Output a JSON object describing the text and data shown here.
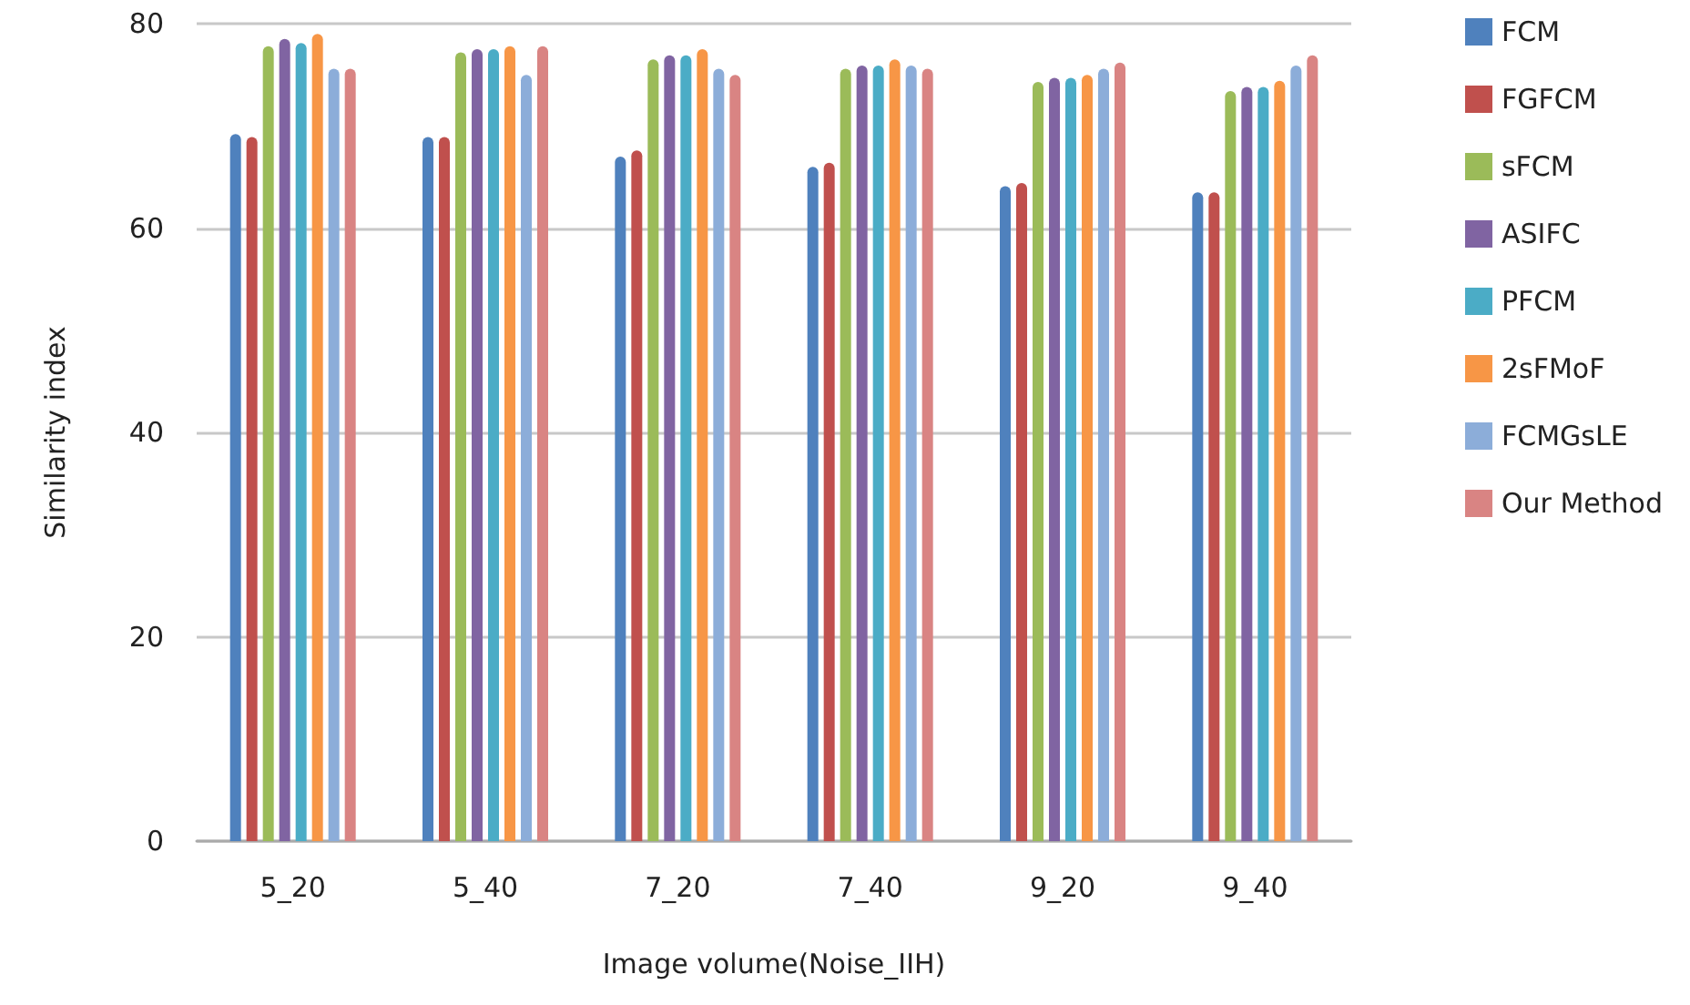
{
  "chart_data": {
    "type": "bar",
    "xlabel": "Image volume(Noise_IIH)",
    "ylabel": "Similarity index",
    "categories": [
      "5_20",
      "5_40",
      "7_20",
      "7_40",
      "9_20",
      "9_40"
    ],
    "series": [
      {
        "name": "FCM",
        "color": "#4f81bd",
        "values": [
          69.2,
          68.9,
          67.0,
          66.0,
          64.1,
          63.5
        ]
      },
      {
        "name": "FGFCM",
        "color": "#c0504d",
        "values": [
          68.9,
          68.9,
          67.6,
          66.4,
          64.4,
          63.5
        ]
      },
      {
        "name": "sFCM",
        "color": "#9bbb59",
        "values": [
          77.8,
          77.2,
          76.5,
          75.6,
          74.3,
          73.4
        ]
      },
      {
        "name": "ASIFC",
        "color": "#8064a2",
        "values": [
          78.5,
          77.5,
          76.9,
          75.9,
          74.7,
          73.8
        ]
      },
      {
        "name": "PFCM",
        "color": "#4bacc6",
        "values": [
          78.1,
          77.5,
          76.9,
          75.9,
          74.7,
          73.8
        ]
      },
      {
        "name": "2sFMoF",
        "color": "#f79646",
        "values": [
          79.0,
          77.8,
          77.5,
          76.5,
          75.0,
          74.4
        ]
      },
      {
        "name": "FCMGsLE",
        "color": "#8cadd9",
        "values": [
          75.6,
          75.0,
          75.6,
          75.9,
          75.6,
          75.9
        ]
      },
      {
        "name": "Our Method",
        "color": "#d98483",
        "values": [
          75.6,
          77.8,
          75.0,
          75.6,
          76.2,
          76.9
        ]
      }
    ],
    "ylim": [
      0,
      80
    ],
    "yticks": [
      0,
      20,
      40,
      60,
      80
    ],
    "grid": "y",
    "legend": "right"
  }
}
